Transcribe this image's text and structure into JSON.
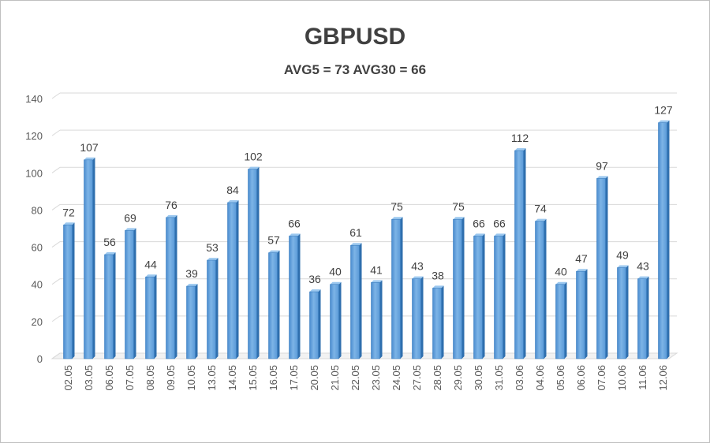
{
  "chart_data": {
    "type": "bar",
    "title": "GBPUSD",
    "subtitle": "AVG5 = 73 AVG30 = 66",
    "xlabel": "",
    "ylabel": "",
    "ylim": [
      0,
      140
    ],
    "yticks": [
      0,
      20,
      40,
      60,
      80,
      100,
      120,
      140
    ],
    "grid": true,
    "bar_color": "#5b9bd5",
    "categories": [
      "02.05",
      "03.05",
      "06.05",
      "07.05",
      "08.05",
      "09.05",
      "10.05",
      "13.05",
      "14.05",
      "15.05",
      "16.05",
      "17.05",
      "20.05",
      "21.05",
      "22.05",
      "23.05",
      "24.05",
      "27.05",
      "28.05",
      "29.05",
      "30.05",
      "31.05",
      "03.06",
      "04.06",
      "05.06",
      "06.06",
      "07.06",
      "10.06",
      "11.06",
      "12.06"
    ],
    "values": [
      72,
      107,
      56,
      69,
      44,
      76,
      39,
      53,
      84,
      102,
      57,
      66,
      36,
      40,
      61,
      41,
      75,
      43,
      38,
      75,
      66,
      66,
      112,
      74,
      40,
      47,
      97,
      49,
      43,
      127
    ]
  }
}
